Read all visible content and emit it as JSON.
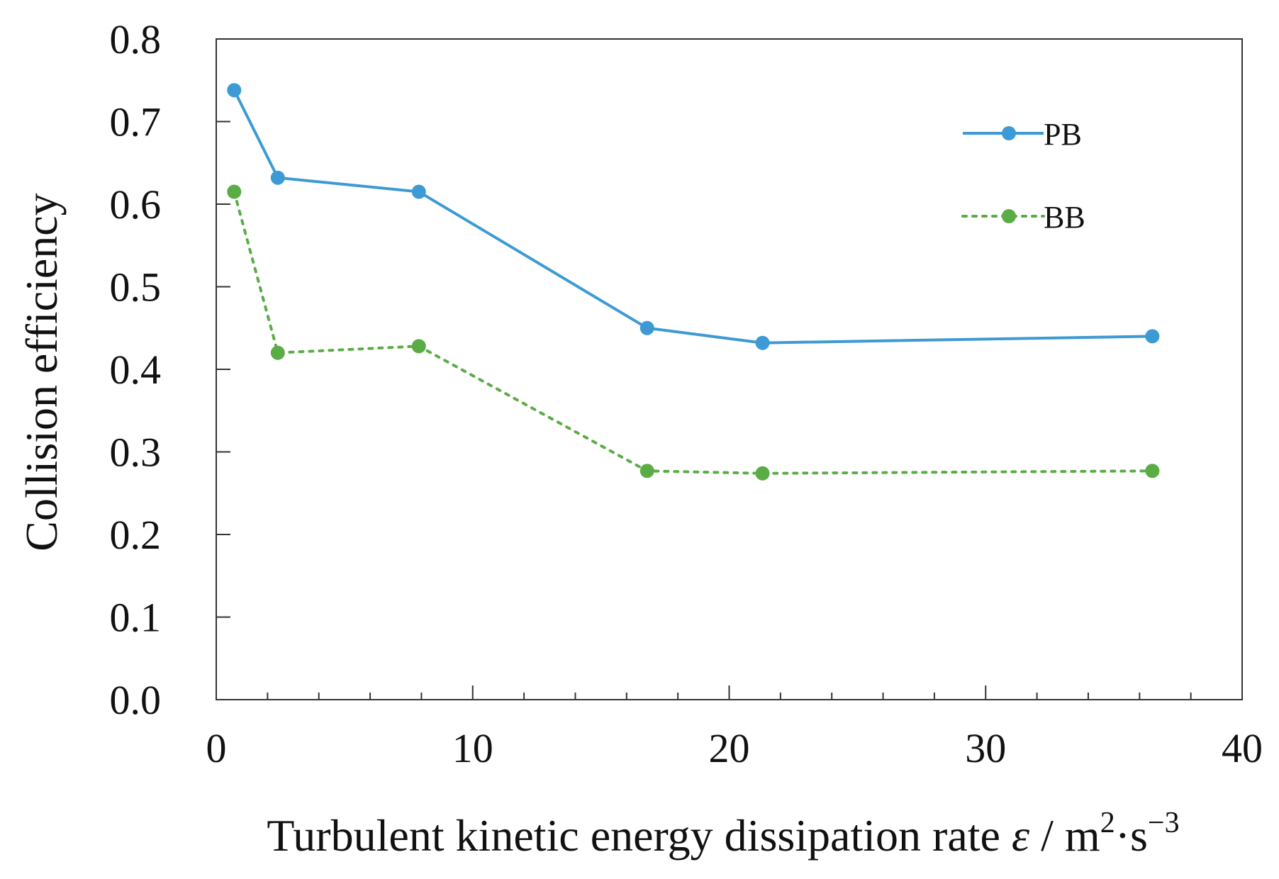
{
  "chart_data": {
    "type": "line",
    "xlabel": "Turbulent kinetic energy dissipation rate ",
    "xlabel_symbol": "ε",
    "xlabel_unit": " / m",
    "xlabel_unit_exp1": "2",
    "xlabel_unit_mid": "·s",
    "xlabel_unit_exp2": "−3",
    "ylabel": "Collision efficiency",
    "xlim": [
      0,
      40
    ],
    "ylim": [
      0.0,
      0.8
    ],
    "x_ticks": [
      0,
      10,
      20,
      30,
      40
    ],
    "x_tick_labels": [
      "0",
      "10",
      "20",
      "30",
      "40"
    ],
    "x_minor_step": 2,
    "y_ticks": [
      0.0,
      0.1,
      0.2,
      0.3,
      0.4,
      0.5,
      0.6,
      0.7,
      0.8
    ],
    "y_tick_labels": [
      "0.0",
      "0.1",
      "0.2",
      "0.3",
      "0.4",
      "0.5",
      "0.6",
      "0.7",
      "0.8"
    ],
    "grid": false,
    "legend_position": "top-right",
    "series": [
      {
        "name": "PB",
        "color": "#3d9ad4",
        "line_style": "solid",
        "x": [
          0.7,
          2.4,
          7.9,
          16.8,
          21.3,
          36.5
        ],
        "y": [
          0.738,
          0.632,
          0.615,
          0.45,
          0.432,
          0.44
        ]
      },
      {
        "name": "BB",
        "color": "#5aac45",
        "line_style": "dotted",
        "x": [
          0.7,
          2.4,
          7.9,
          16.8,
          21.3,
          36.5
        ],
        "y": [
          0.615,
          0.42,
          0.428,
          0.277,
          0.274,
          0.277
        ]
      }
    ]
  }
}
